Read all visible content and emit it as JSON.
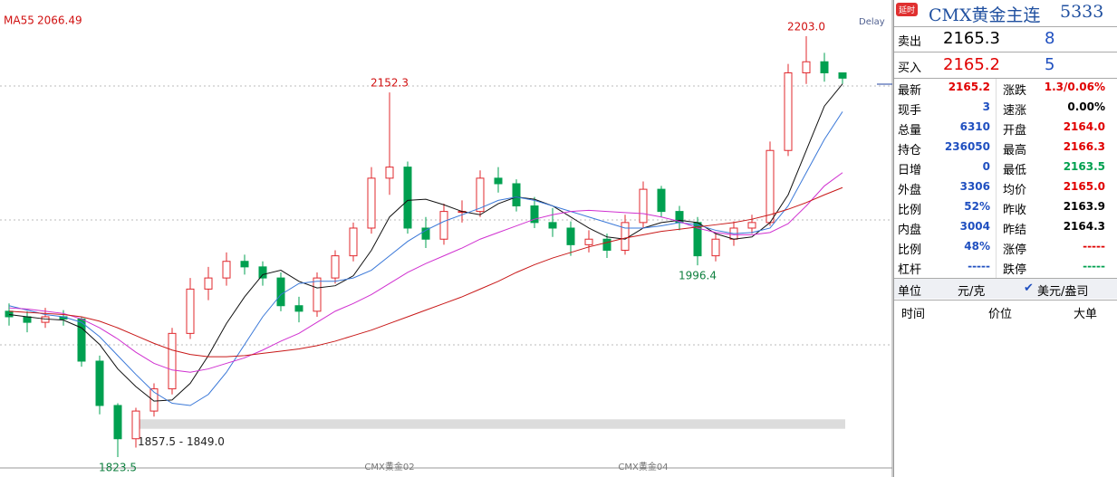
{
  "chart_data": {
    "type": "candlestick",
    "legend": {
      "name": "MA55",
      "value": 2066.49
    },
    "delay": "Delay",
    "categories": [
      null,
      null,
      null,
      null,
      null,
      null,
      null,
      null,
      null,
      null,
      null,
      null,
      null,
      null,
      null,
      null,
      null,
      null,
      null,
      null,
      null,
      "CMX黄金02",
      null,
      null,
      null,
      null,
      null,
      null,
      null,
      null,
      null,
      null,
      null,
      null,
      null,
      "CMX黄金04",
      null,
      null,
      null,
      null,
      null,
      null,
      null,
      null,
      null,
      null,
      null
    ],
    "open": [
      1955,
      1950,
      1945,
      1950,
      1948,
      1910,
      1870,
      1840,
      1865,
      1885,
      1935,
      1975,
      1985,
      2000,
      1995,
      1985,
      1960,
      1955,
      1985,
      2005,
      2030,
      2075,
      2085,
      2030,
      2020,
      2045,
      2045,
      2075,
      2070,
      2050,
      2035,
      2030,
      2015,
      2020,
      2010,
      2035,
      2065,
      2045,
      2035,
      2005,
      2020,
      2030,
      2035,
      2100,
      2170,
      2180,
      2170
    ],
    "high": [
      1962,
      1955,
      1958,
      1956,
      1950,
      1915,
      1872,
      1868,
      1890,
      1940,
      1985,
      1995,
      2008,
      2006,
      2000,
      1990,
      1968,
      1990,
      2010,
      2035,
      2085,
      2152.3,
      2090,
      2040,
      2052,
      2055,
      2082,
      2085,
      2074,
      2058,
      2048,
      2036,
      2028,
      2025,
      2042,
      2072,
      2068,
      2050,
      2040,
      2025,
      2036,
      2042,
      2108,
      2178,
      2203,
      2188,
      2170
    ],
    "low": [
      1942,
      1936,
      1940,
      1942,
      1905,
      1862,
      1823.5,
      1832,
      1860,
      1880,
      1930,
      1965,
      1978,
      1988,
      1978,
      1955,
      1945,
      1950,
      1980,
      2000,
      2025,
      2060,
      2025,
      2012,
      2015,
      2035,
      2040,
      2062,
      2045,
      2030,
      2022,
      2005,
      2008,
      2003,
      2006,
      2030,
      2040,
      2028,
      1996.4,
      2000,
      2014,
      2025,
      2032,
      2095,
      2160,
      2162,
      2160
    ],
    "close": [
      1950,
      1945,
      1950,
      1948,
      1910,
      1870,
      1840,
      1865,
      1885,
      1935,
      1975,
      1985,
      2000,
      1995,
      1985,
      1960,
      1955,
      1985,
      2005,
      2030,
      2075,
      2085,
      2030,
      2020,
      2045,
      2045,
      2075,
      2070,
      2050,
      2035,
      2030,
      2015,
      2020,
      2010,
      2035,
      2065,
      2045,
      2035,
      2005,
      2020,
      2030,
      2035,
      2100,
      2170,
      2180,
      2170,
      2165.2
    ],
    "up_color": "#e0282e",
    "down_color": "#00a050",
    "series": [
      {
        "name": "MA5",
        "color": "#111111",
        "values": [
          1952,
          1950,
          1948,
          1947,
          1940,
          1925,
          1903,
          1887,
          1874,
          1875,
          1890,
          1915,
          1944,
          1968,
          1988,
          1992,
          1982,
          1976,
          1978,
          1987,
          2010,
          2040,
          2055,
          2056,
          2051,
          2045,
          2042,
          2052,
          2058,
          2056,
          2050,
          2040,
          2030,
          2022,
          2020,
          2030,
          2035,
          2037,
          2035,
          2025,
          2020,
          2022,
          2035,
          2060,
          2100,
          2140,
          2160
        ]
      },
      {
        "name": "MA10",
        "color": "#3a78d8",
        "values": [
          1960,
          1956,
          1952,
          1950,
          1945,
          1932,
          1915,
          1898,
          1882,
          1872,
          1870,
          1880,
          1900,
          1925,
          1950,
          1970,
          1980,
          1982,
          1982,
          1985,
          1992,
          2005,
          2018,
          2028,
          2036,
          2042,
          2048,
          2055,
          2058,
          2055,
          2050,
          2045,
          2040,
          2035,
          2030,
          2030,
          2032,
          2035,
          2033,
          2028,
          2025,
          2026,
          2030,
          2050,
          2080,
          2110,
          2135
        ]
      },
      {
        "name": "MA20",
        "color": "#d030d0",
        "values": [
          1958,
          1957,
          1955,
          1953,
          1948,
          1940,
          1930,
          1918,
          1908,
          1902,
          1900,
          1903,
          1908,
          1913,
          1920,
          1928,
          1935,
          1945,
          1955,
          1962,
          1970,
          1980,
          1990,
          1998,
          2005,
          2012,
          2020,
          2026,
          2032,
          2038,
          2042,
          2045,
          2046,
          2045,
          2044,
          2043,
          2040,
          2036,
          2030,
          2026,
          2024,
          2024,
          2026,
          2034,
          2050,
          2068,
          2080
        ]
      },
      {
        "name": "MA55",
        "color": "#c81818",
        "values": [
          1955,
          1954,
          1953,
          1952,
          1950,
          1946,
          1940,
          1933,
          1926,
          1920,
          1916,
          1914,
          1914,
          1915,
          1917,
          1919,
          1921,
          1924,
          1928,
          1933,
          1938,
          1944,
          1950,
          1956,
          1962,
          1968,
          1975,
          1982,
          1990,
          1997,
          2003,
          2008,
          2013,
          2017,
          2021,
          2024,
          2027,
          2029,
          2031,
          2033,
          2035,
          2038,
          2042,
          2047,
          2053,
          2060,
          2066.5
        ]
      }
    ],
    "annotations": [
      {
        "value": 2203,
        "label": "2203.0"
      },
      {
        "value": 2152.3,
        "label": "2152.3"
      },
      {
        "value": 1996.4,
        "label": "1996.4"
      },
      {
        "value": 1823.5,
        "label": "1823.5"
      }
    ],
    "gap": {
      "from": 1857.5,
      "to": 1849.0,
      "label": "1857.5 - 1849.0"
    },
    "ylim": [
      1815.3,
      2225.9
    ]
  },
  "quote_panel": {
    "badge": "延时",
    "title": "CMX黄金主连",
    "code": "5333",
    "ask": {
      "label": "卖出",
      "price": "2165.3",
      "size": "8"
    },
    "bid": {
      "label": "买入",
      "price": "2165.2",
      "size": "5"
    },
    "left": [
      {
        "label": "最新",
        "value": "2165.2",
        "color": "#e00000"
      },
      {
        "label": "现手",
        "value": "3",
        "color": "#2050c0"
      },
      {
        "label": "总量",
        "value": "6310",
        "color": "#2050c0"
      },
      {
        "label": "持仓",
        "value": "236050",
        "color": "#2050c0"
      },
      {
        "label": "日增",
        "value": "0",
        "color": "#2050c0"
      },
      {
        "label": "外盘",
        "value": "3306",
        "color": "#2050c0"
      },
      {
        "label": "比例",
        "value": "52%",
        "color": "#2050c0"
      },
      {
        "label": "内盘",
        "value": "3004",
        "color": "#2050c0"
      },
      {
        "label": "比例",
        "value": "48%",
        "color": "#2050c0"
      },
      {
        "label": "杠杆",
        "value": "-----",
        "color": "#2050c0"
      }
    ],
    "right": [
      {
        "label": "涨跌",
        "value": "1.3/0.06%",
        "color": "#e00000"
      },
      {
        "label": "速涨",
        "value": "0.00%",
        "color": "#000000"
      },
      {
        "label": "开盘",
        "value": "2164.0",
        "color": "#e00000"
      },
      {
        "label": "最高",
        "value": "2166.3",
        "color": "#e00000"
      },
      {
        "label": "最低",
        "value": "2163.5",
        "color": "#00a050"
      },
      {
        "label": "均价",
        "value": "2165.0",
        "color": "#e00000"
      },
      {
        "label": "昨收",
        "value": "2163.9",
        "color": "#000000"
      },
      {
        "label": "昨结",
        "value": "2164.3",
        "color": "#000000"
      },
      {
        "label": "涨停",
        "value": "-----",
        "color": "#e00000"
      },
      {
        "label": "跌停",
        "value": "-----",
        "color": "#00a050"
      }
    ],
    "unit": {
      "label": "单位",
      "option1": "元/克",
      "option2": "美元/盎司"
    },
    "ticks_header": {
      "time": "时间",
      "price": "价位",
      "big": "大单"
    }
  }
}
